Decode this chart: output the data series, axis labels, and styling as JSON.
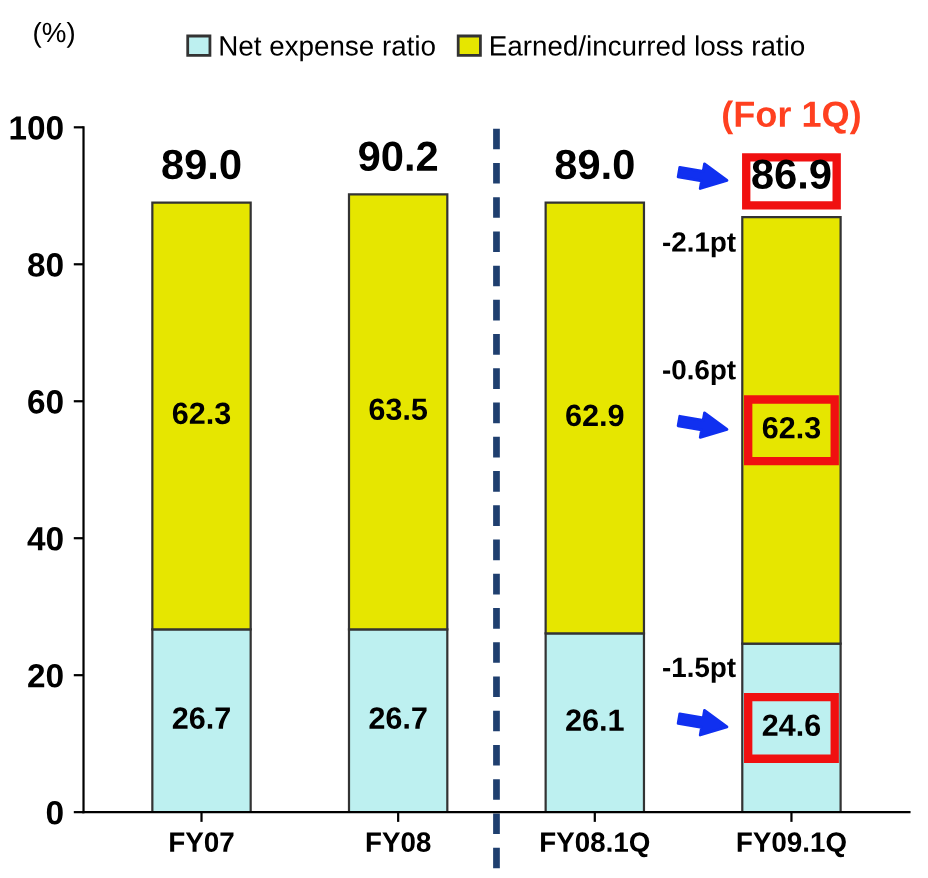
{
  "chart_data": {
    "type": "bar",
    "stacked": true,
    "ylabel": "(%)",
    "categories": [
      "FY07",
      "FY08",
      "FY08.1Q",
      "FY09.1Q"
    ],
    "series": [
      {
        "name": "Net expense ratio",
        "color": "#bdf0f0",
        "values": [
          26.7,
          26.7,
          26.1,
          24.6
        ]
      },
      {
        "name": "Earned/incurred loss ratio",
        "color": "#e6e600",
        "values": [
          62.3,
          63.5,
          62.9,
          62.3
        ]
      }
    ],
    "totals": [
      "89.0",
      "90.2",
      "89.0",
      "86.9"
    ],
    "data_labels": true,
    "ylim": [
      0,
      100
    ],
    "yticks": [
      0,
      20,
      40,
      60,
      80,
      100
    ],
    "legend": "top",
    "grid": false,
    "annotations": [
      "(For 1Q)",
      "-2.1pt",
      "-0.6pt",
      "-1.5pt"
    ]
  }
}
